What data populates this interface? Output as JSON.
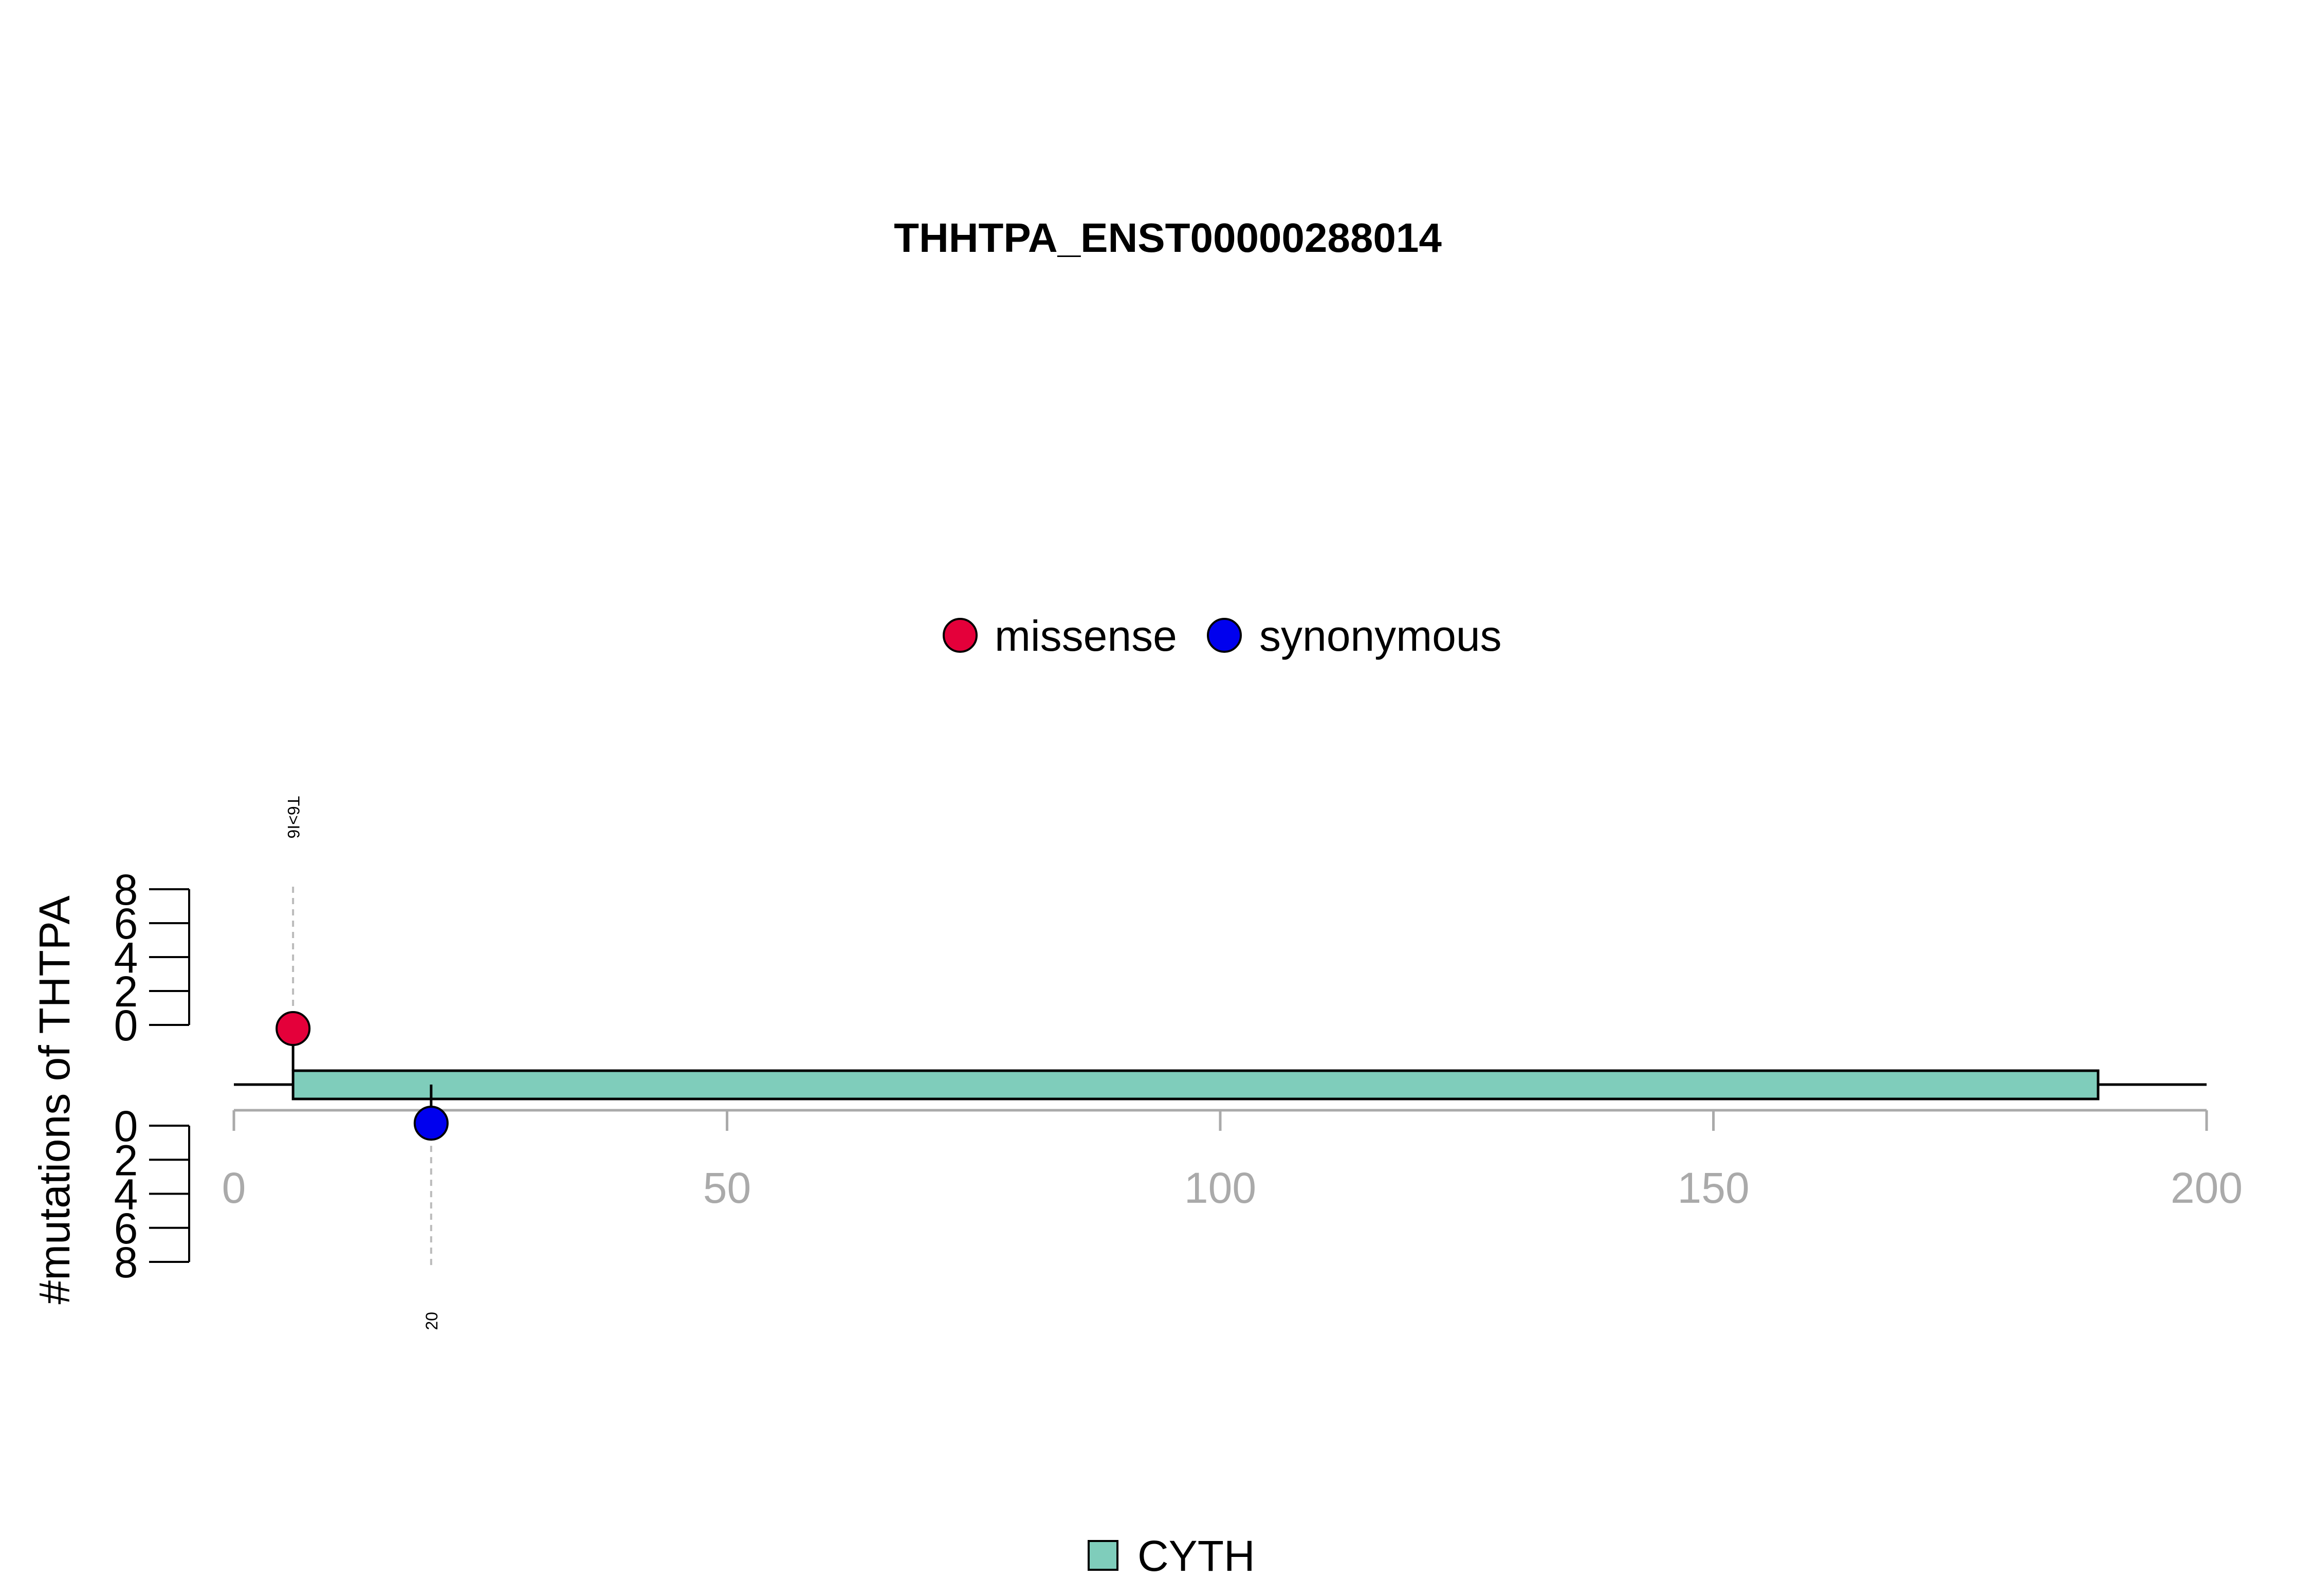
{
  "chart_data": {
    "type": "lollipop",
    "title": "THHTPA_ENST00000288014",
    "ylabel": "#mutations of THTPA",
    "xlim": [
      0,
      200
    ],
    "x_ticks": [
      "0",
      "50",
      "100",
      "150",
      "200"
    ],
    "x_tick_values": [
      0,
      50,
      100,
      150,
      200
    ],
    "y_ticks": [
      "0",
      "2",
      "4",
      "6",
      "8"
    ],
    "y_tick_values": [
      0,
      2,
      4,
      6,
      8
    ],
    "ylim": [
      0,
      8
    ],
    "protein_length": 200,
    "domains": [
      {
        "name": "CYTH",
        "start": 6,
        "end": 189,
        "color": "#7fcdbb"
      }
    ],
    "legend": [
      {
        "name": "missense",
        "color": "#e4003a"
      },
      {
        "name": "synonymous",
        "color": "#0000ee"
      }
    ],
    "domain_legend": [
      {
        "name": "CYTH",
        "color": "#7fcdbb"
      }
    ],
    "mutations": [
      {
        "position": 6,
        "count": 1,
        "type": "missense",
        "side": "top",
        "label": "T6>I6",
        "color": "#e4003a"
      },
      {
        "position": 20,
        "count": 1,
        "type": "synonymous",
        "side": "bottom",
        "label": "20",
        "color": "#0000ee"
      }
    ]
  }
}
